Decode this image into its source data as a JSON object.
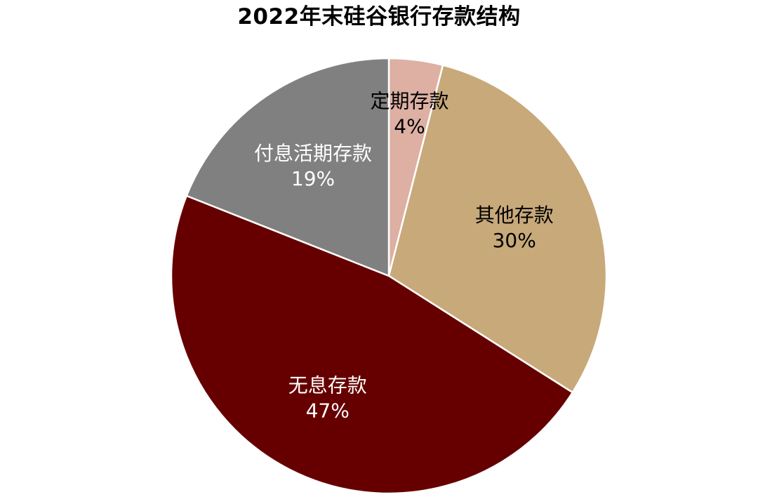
{
  "chart_data": {
    "type": "pie",
    "title": "2022年末硅谷银行存款结构",
    "start_angle_deg": 0,
    "direction": "clockwise",
    "slices": [
      {
        "label": "定期存款",
        "value": 4,
        "value_label": "4%",
        "color": "#DDB0A3",
        "text_color": "#000000"
      },
      {
        "label": "其他存款",
        "value": 30,
        "value_label": "30%",
        "color": "#C8A97A",
        "text_color": "#000000"
      },
      {
        "label": "无息存款",
        "value": 47,
        "value_label": "47%",
        "color": "#660000",
        "text_color": "#ffffff"
      },
      {
        "label": "付息活期存款",
        "value": 19,
        "value_label": "19%",
        "color": "#808080",
        "text_color": "#ffffff"
      }
    ]
  }
}
